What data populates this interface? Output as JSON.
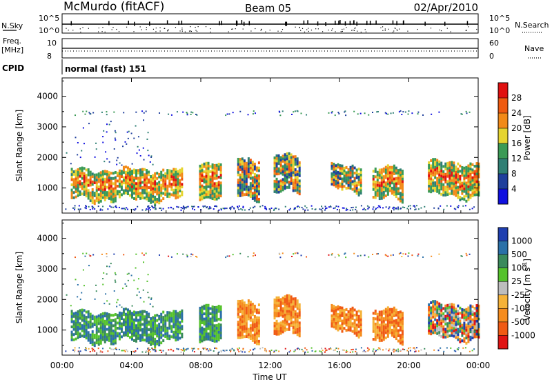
{
  "header": {
    "station": "McMurdo (fitACF)",
    "beam": "Beam 05",
    "date": "02/Apr/2010"
  },
  "top_panels": {
    "left_labels": {
      "nsky": "N.Sky",
      "freq": "Freq.",
      "mhz": "[MHz]",
      "cpid": "CPID"
    },
    "right_labels": {
      "nsearch": "N.Search",
      "nave": "Nave"
    },
    "nsky_ticks": {
      "top": "10^5",
      "bottom": "10^0"
    },
    "nsearch_ticks": {
      "top": "10^5",
      "bottom": "10^0"
    },
    "freq_ticks": {
      "top": "10",
      "bottom": "8"
    },
    "nave_ticks": {
      "top": "60",
      "bottom": "0"
    },
    "cpid_text": "normal (fast) 151"
  },
  "colors": {
    "power_scale": [
      "#1010e0",
      "#1f3f9c",
      "#2f7f74",
      "#3a9a55",
      "#e5d430",
      "#f28a18",
      "#ef5a10",
      "#e01010"
    ],
    "velocity_scale": [
      "#e01414",
      "#f05a14",
      "#f58c1e",
      "#f5b238",
      "#bdbdbd",
      "#55c22c",
      "#3a8a5c",
      "#2a70a8",
      "#1f3fb0"
    ]
  },
  "chart_data": [
    {
      "type": "heatmap",
      "panel": "power",
      "ylabel": "Slant Range [km]",
      "yticks": [
        "1000",
        "2000",
        "3000",
        "4000"
      ],
      "ylim": [
        180,
        4600
      ],
      "xlim": [
        0,
        24
      ],
      "colorbar": {
        "label": "Power [dB]",
        "ticks": [
          "4",
          "8",
          "12",
          "16",
          "20",
          "24",
          "28"
        ],
        "range": [
          0,
          32
        ]
      },
      "regions": [
        {
          "t0": 0.5,
          "t1": 6.9,
          "r0": 600,
          "r1": 1550,
          "level": "high"
        },
        {
          "t0": 7.9,
          "t1": 9.1,
          "r0": 700,
          "r1": 1800,
          "level": "high"
        },
        {
          "t0": 10.1,
          "t1": 11.3,
          "r0": 700,
          "r1": 1900,
          "level": "mixed"
        },
        {
          "t0": 12.2,
          "t1": 13.7,
          "r0": 800,
          "r1": 2000,
          "level": "mixed"
        },
        {
          "t0": 15.5,
          "t1": 17.2,
          "r0": 900,
          "r1": 1700,
          "level": "mixed"
        },
        {
          "t0": 17.9,
          "t1": 19.6,
          "r0": 600,
          "r1": 1600,
          "level": "high"
        },
        {
          "t0": 21.1,
          "t1": 24.0,
          "r0": 700,
          "r1": 1800,
          "level": "high"
        }
      ]
    },
    {
      "type": "heatmap",
      "panel": "velocity",
      "ylabel": "Slant Range [km]",
      "yticks": [
        "1000",
        "2000",
        "3000",
        "4000"
      ],
      "ylim": [
        180,
        4600
      ],
      "xlim": [
        0,
        24
      ],
      "xlabel": "Time UT",
      "xticks": [
        "00:00",
        "04:00",
        "08:00",
        "12:00",
        "16:00",
        "20:00",
        "00:00"
      ],
      "colorbar": {
        "label": "Velocity [m s^-1]",
        "ticks": [
          "1000",
          "500",
          "100",
          "25",
          "-25",
          "-100",
          "-500",
          "-1000"
        ]
      },
      "regions": [
        {
          "t0": 0.5,
          "t1": 6.9,
          "r0": 600,
          "r1": 1550,
          "velocity": "positive"
        },
        {
          "t0": 7.9,
          "t1": 9.1,
          "r0": 700,
          "r1": 1800,
          "velocity": "positive"
        },
        {
          "t0": 10.1,
          "t1": 11.3,
          "r0": 700,
          "r1": 1900,
          "velocity": "negative"
        },
        {
          "t0": 12.2,
          "t1": 13.7,
          "r0": 800,
          "r1": 2000,
          "velocity": "negative"
        },
        {
          "t0": 15.5,
          "t1": 17.2,
          "r0": 900,
          "r1": 1700,
          "velocity": "negative"
        },
        {
          "t0": 17.9,
          "t1": 19.6,
          "r0": 600,
          "r1": 1600,
          "velocity": "negative"
        },
        {
          "t0": 21.1,
          "t1": 24.0,
          "r0": 700,
          "r1": 1800,
          "velocity": "mixed"
        }
      ]
    }
  ]
}
